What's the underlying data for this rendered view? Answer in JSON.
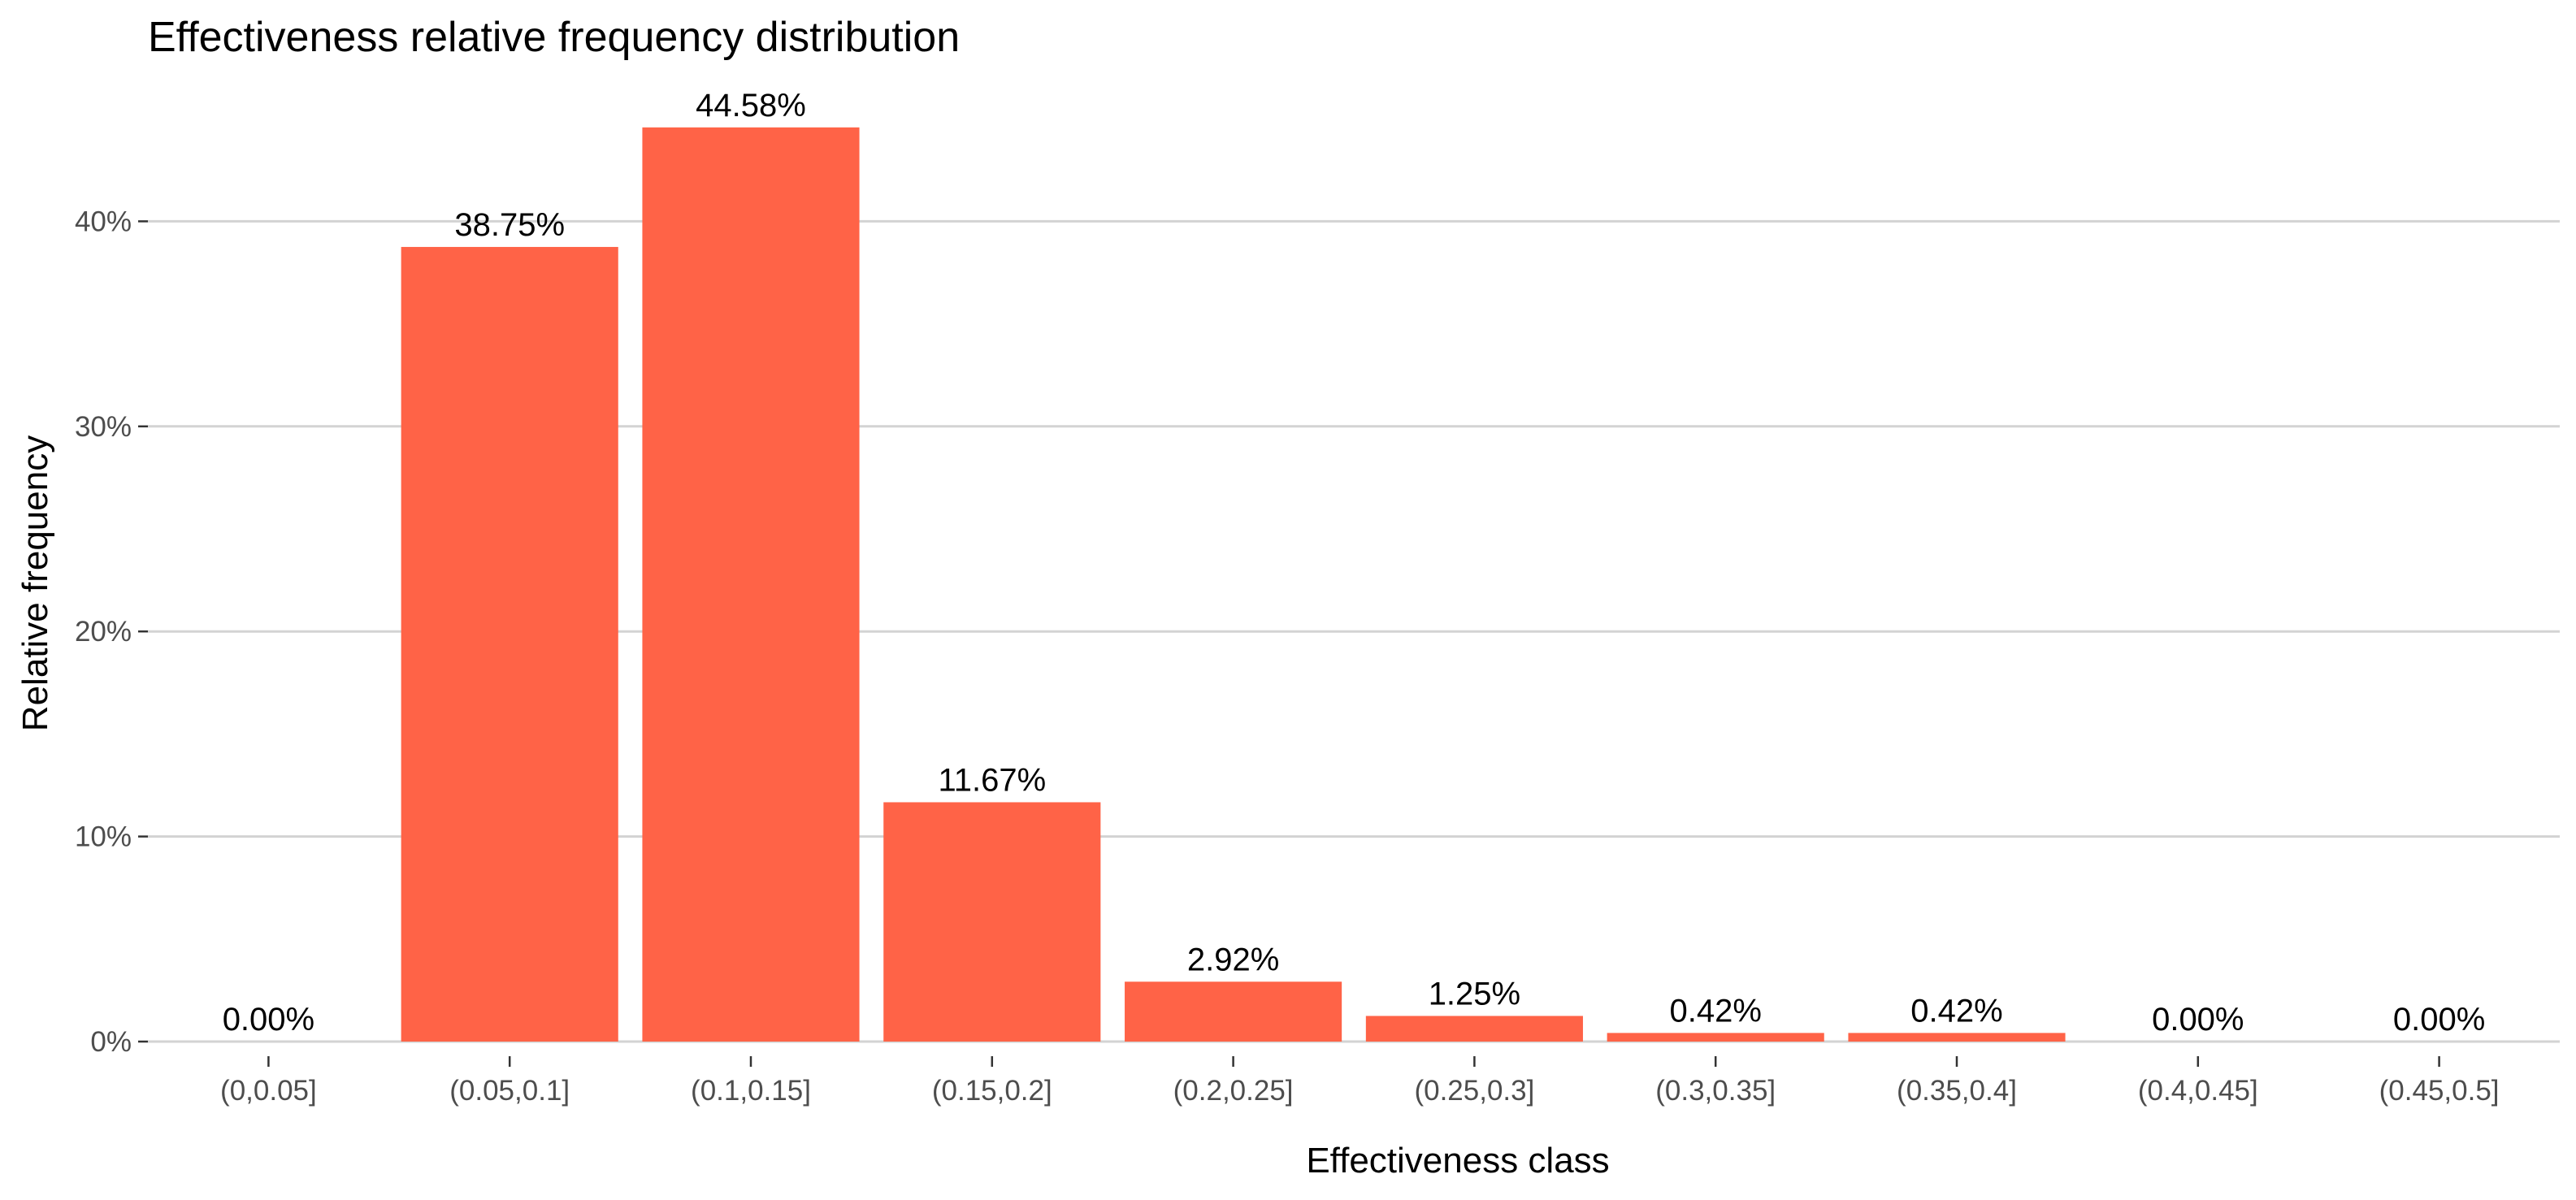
{
  "chart_data": {
    "type": "bar",
    "title": "Effectiveness relative frequency distribution",
    "xlabel": "Effectiveness class",
    "ylabel": "Relative frequency",
    "categories": [
      "(0,0.05]",
      "(0.05,0.1]",
      "(0.1,0.15]",
      "(0.15,0.2]",
      "(0.2,0.25]",
      "(0.25,0.3]",
      "(0.3,0.35]",
      "(0.35,0.4]",
      "(0.4,0.45]",
      "(0.45,0.5]"
    ],
    "values": [
      0.0,
      38.75,
      44.58,
      11.67,
      2.92,
      1.25,
      0.42,
      0.42,
      0.0,
      0.0
    ],
    "value_labels": [
      "0.00%",
      "38.75%",
      "44.58%",
      "11.67%",
      "2.92%",
      "1.25%",
      "0.42%",
      "0.42%",
      "0.00%",
      "0.00%"
    ],
    "y_ticks": [
      0,
      10,
      20,
      30,
      40
    ],
    "y_tick_labels": [
      "0%",
      "10%",
      "20%",
      "30%",
      "40%"
    ],
    "ylim": [
      0,
      46
    ],
    "grid": true,
    "legend": "none",
    "bar_color": "#FF6347"
  }
}
